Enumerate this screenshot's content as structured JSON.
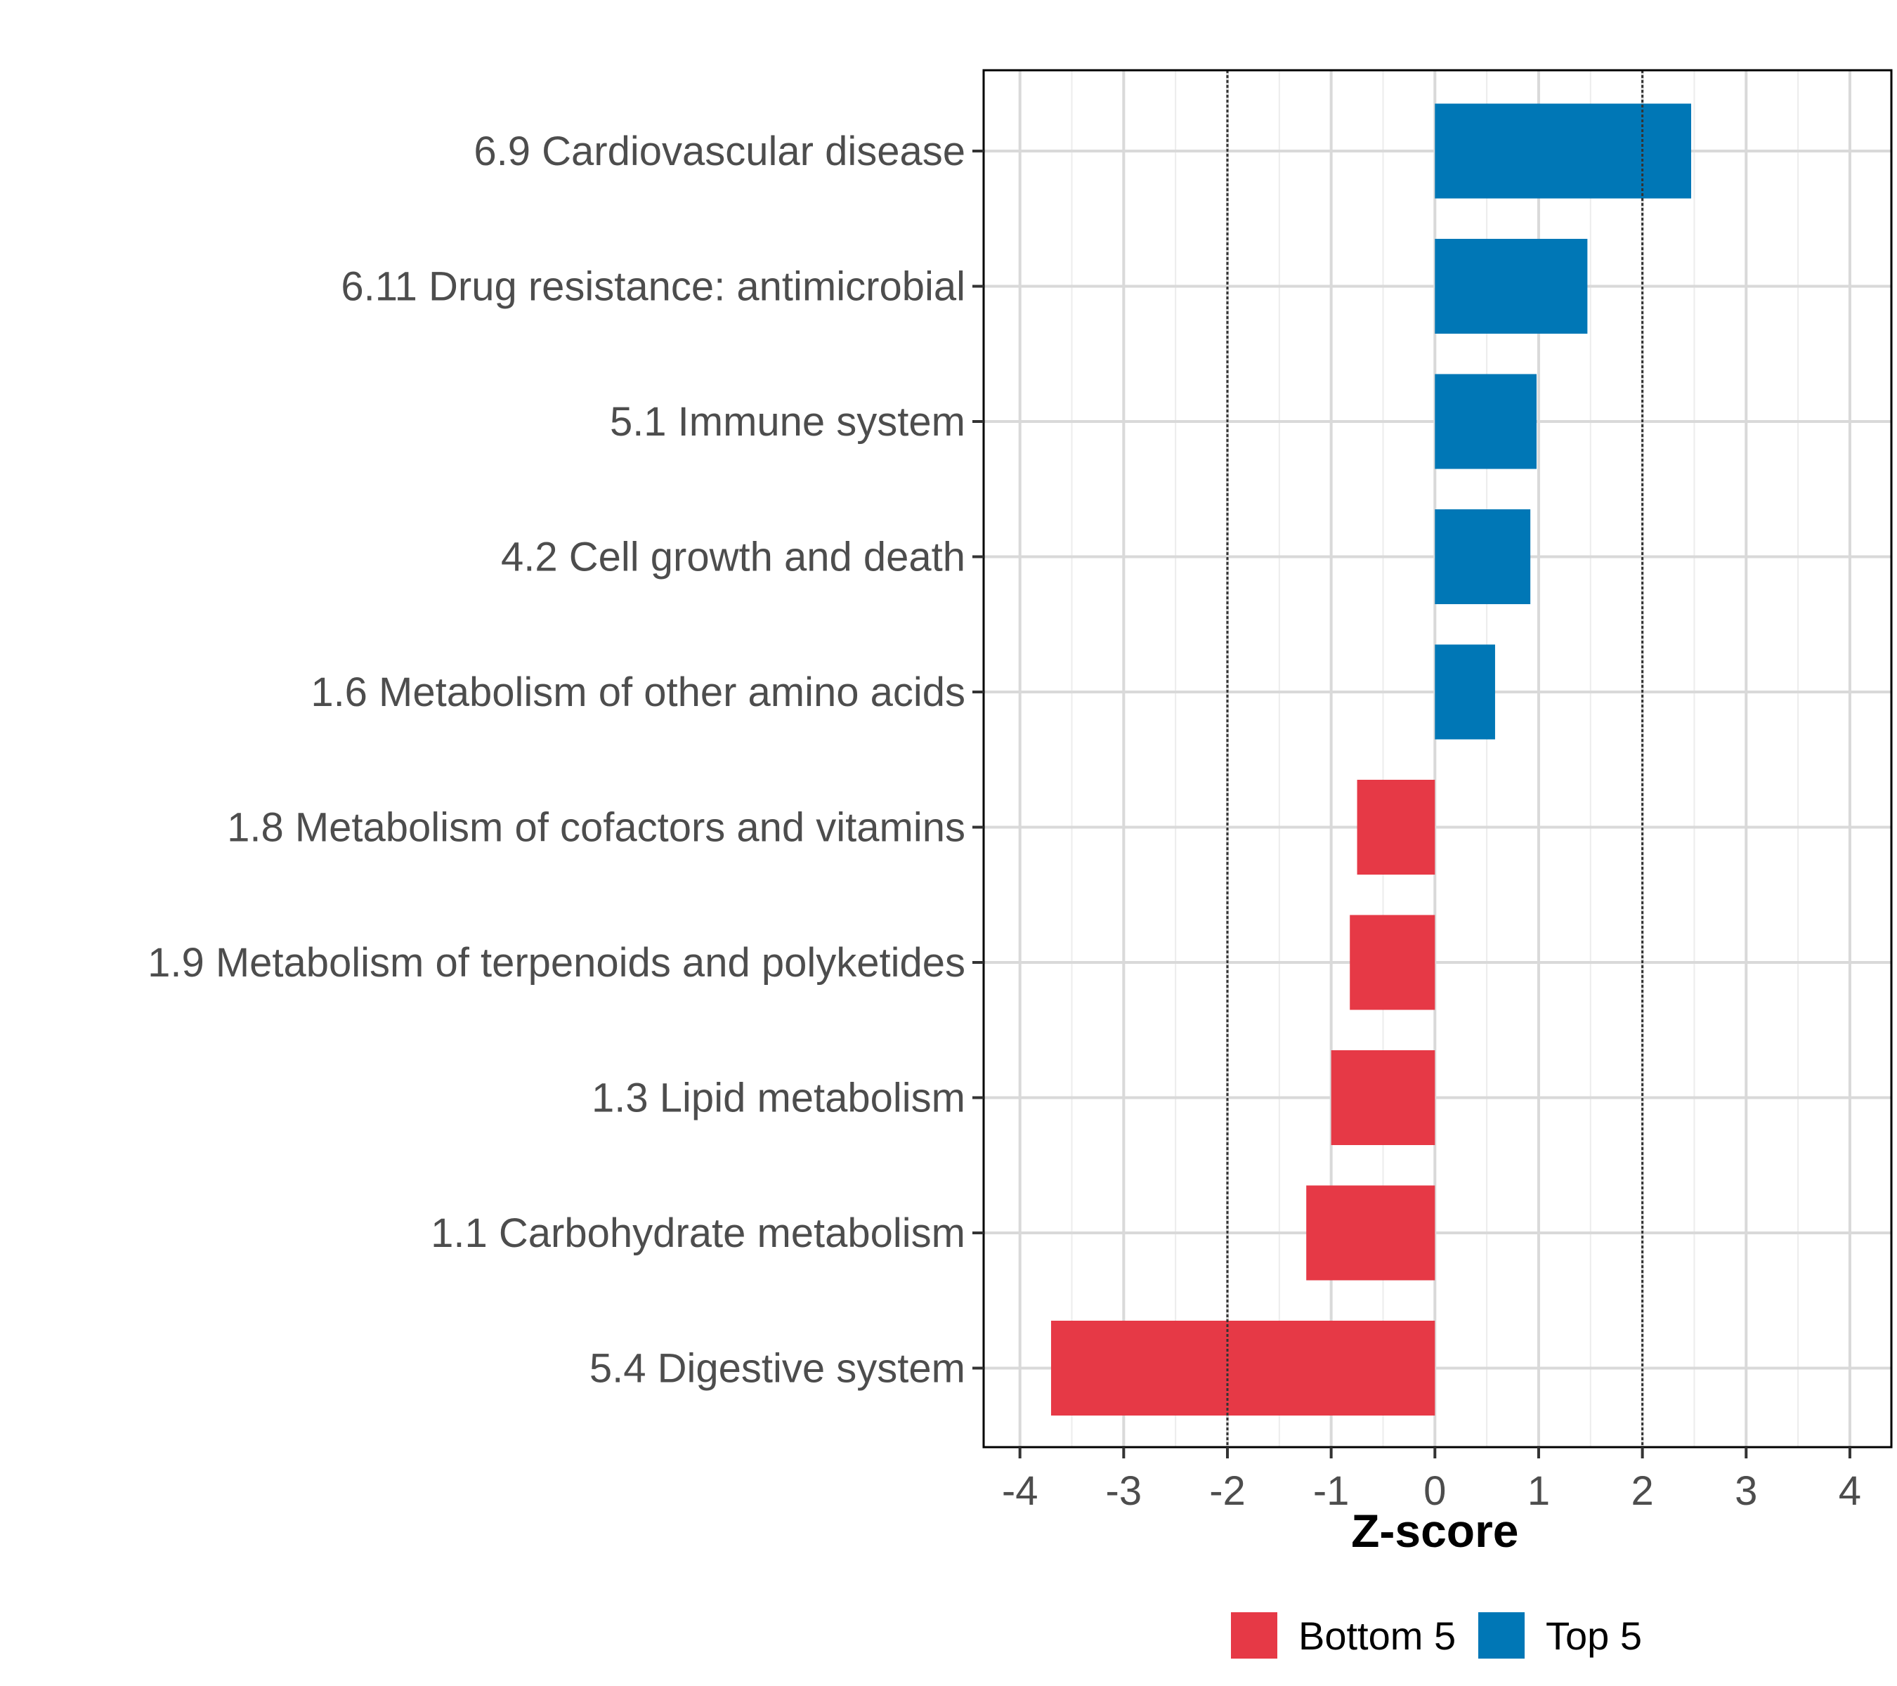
{
  "chart_data": {
    "type": "bar",
    "orientation": "horizontal",
    "categories": [
      "6.9 Cardiovascular disease",
      "6.11 Drug resistance: antimicrobial",
      "5.1 Immune system",
      "4.2 Cell growth and death",
      "1.6 Metabolism of other amino acids",
      "1.8 Metabolism of cofactors and vitamins",
      "1.9 Metabolism of terpenoids and polyketides",
      "1.3 Lipid metabolism",
      "1.1 Carbohydrate metabolism",
      "5.4 Digestive system"
    ],
    "values": [
      2.47,
      1.47,
      0.98,
      0.92,
      0.58,
      -0.75,
      -0.82,
      -1.0,
      -1.24,
      -3.7
    ],
    "groups": [
      "Top 5",
      "Top 5",
      "Top 5",
      "Top 5",
      "Top 5",
      "Bottom 5",
      "Bottom 5",
      "Bottom 5",
      "Bottom 5",
      "Bottom 5"
    ],
    "xlabel": "Z-score",
    "ylabel": "",
    "xlim": [
      -4.35,
      4.4
    ],
    "xticks": [
      -4,
      -3,
      -2,
      -1,
      0,
      1,
      2,
      3,
      4
    ],
    "tick_labels": [
      "-4",
      "-3",
      "-2",
      "-1",
      "0",
      "1",
      "2",
      "3",
      "4"
    ],
    "reference_lines": [
      -2,
      2
    ],
    "grid": true,
    "legend": {
      "position": "bottom",
      "entries": [
        {
          "label": "Bottom 5",
          "color": "#E63946"
        },
        {
          "label": "Top 5",
          "color": "#0077B6"
        }
      ]
    },
    "colors": {
      "Top 5": "#0077B6",
      "Bottom 5": "#E63946"
    }
  }
}
